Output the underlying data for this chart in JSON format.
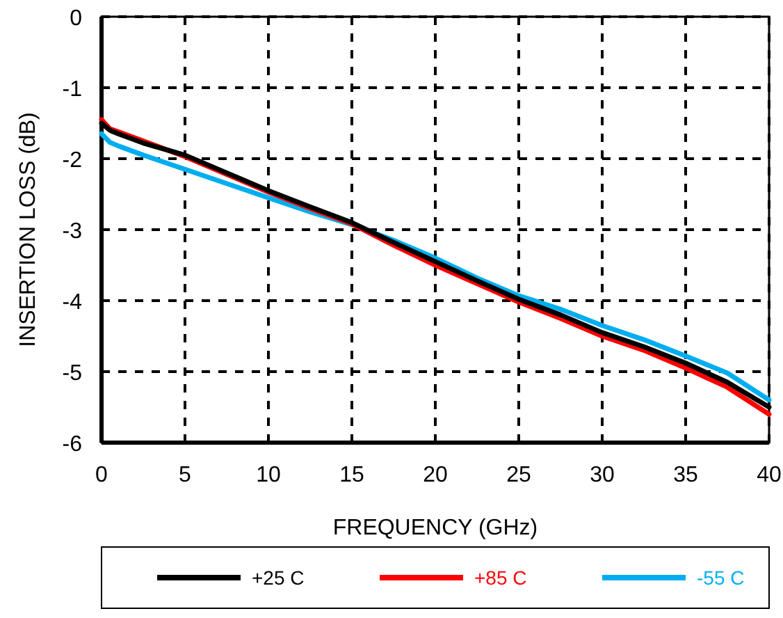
{
  "chart_data": {
    "type": "line",
    "xlabel": "FREQUENCY (GHz)",
    "ylabel": "INSERTION LOSS (dB)",
    "xlim": [
      0,
      40
    ],
    "ylim": [
      -6,
      0
    ],
    "xticks": [
      0,
      5,
      10,
      15,
      20,
      25,
      30,
      35,
      40
    ],
    "yticks": [
      -6,
      -5,
      -4,
      -3,
      -2,
      -1,
      0
    ],
    "grid": true,
    "legend": "bottom",
    "line_style": "solid",
    "x": [
      0,
      0.5,
      1,
      2.5,
      5,
      7.5,
      10,
      12.5,
      15,
      17.5,
      20,
      22.5,
      25,
      27.5,
      30,
      32.5,
      35,
      37.5,
      40
    ],
    "series": [
      {
        "name": "+25 C",
        "color": "#000000",
        "values": [
          -1.5,
          -1.6,
          -1.65,
          -1.78,
          -1.95,
          -2.2,
          -2.45,
          -2.68,
          -2.9,
          -3.18,
          -3.45,
          -3.72,
          -3.98,
          -4.2,
          -4.45,
          -4.65,
          -4.88,
          -5.15,
          -5.5
        ]
      },
      {
        "name": "+85 C",
        "color": "#ff0000",
        "values": [
          -1.45,
          -1.58,
          -1.62,
          -1.75,
          -1.97,
          -2.22,
          -2.47,
          -2.7,
          -2.92,
          -3.22,
          -3.5,
          -3.76,
          -4.02,
          -4.25,
          -4.5,
          -4.7,
          -4.95,
          -5.22,
          -5.6
        ]
      },
      {
        "name": "-55 C",
        "color": "#00aeef",
        "values": [
          -1.65,
          -1.77,
          -1.82,
          -1.95,
          -2.15,
          -2.35,
          -2.55,
          -2.75,
          -2.93,
          -3.15,
          -3.4,
          -3.68,
          -3.93,
          -4.12,
          -4.35,
          -4.55,
          -4.78,
          -5.02,
          -5.4
        ]
      }
    ]
  }
}
